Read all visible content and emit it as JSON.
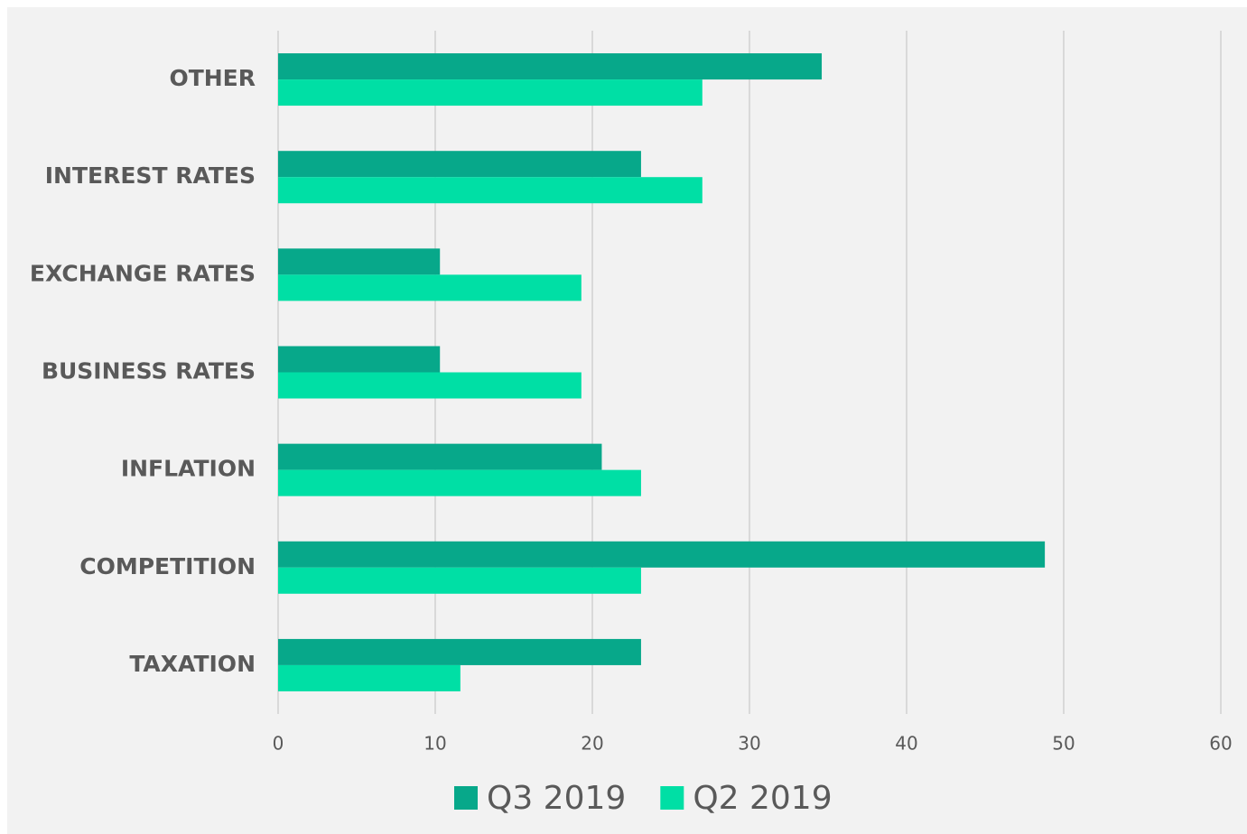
{
  "chart_data": {
    "type": "bar",
    "orientation": "horizontal",
    "categories": [
      "OTHER",
      "INTEREST RATES",
      "EXCHANGE RATES",
      "BUSINESS RATES",
      "INFLATION",
      "COMPETITION",
      "TAXATION"
    ],
    "series": [
      {
        "name": "Q3 2019",
        "color": "#07a88a",
        "values": [
          34.6,
          23.1,
          10.3,
          10.3,
          20.6,
          48.8,
          23.1
        ]
      },
      {
        "name": "Q2 2019",
        "color": "#00dfa5",
        "values": [
          27.0,
          27.0,
          19.3,
          19.3,
          23.1,
          23.1,
          11.6
        ]
      }
    ],
    "xlim": [
      0,
      60
    ],
    "xticks": [
      0,
      10,
      20,
      30,
      40,
      50,
      60
    ],
    "grid": true,
    "legend": "bottom"
  }
}
